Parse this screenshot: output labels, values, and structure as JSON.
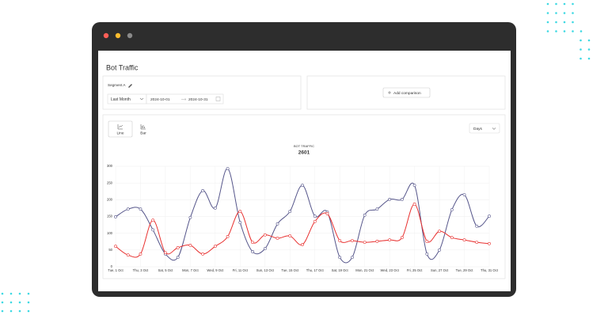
{
  "header": {
    "title": "Bot Traffic"
  },
  "filters": {
    "segment": "Segment A",
    "period": "Last Month",
    "start_date": "2024-10-01",
    "end_date": "2024-10-31"
  },
  "comparison": {
    "button": "Add comparison"
  },
  "view": {
    "tabs": [
      "Line",
      "Bar"
    ],
    "interval": "Days"
  },
  "chart_data": {
    "type": "line",
    "title": "BOT TRAFFIC",
    "subtitle": "2601",
    "categories": [
      "Tue, 1 Oct",
      null,
      "Thu, 3 Oct",
      null,
      "Sat, 5 Oct",
      null,
      "Mon, 7 Oct",
      null,
      "Wed, 9 Oct",
      null,
      "Fri, 11 Oct",
      null,
      "Sun, 13 Oct",
      null,
      "Tue, 15 Oct",
      null,
      "Thu, 17 Oct",
      null,
      "Sat, 19 Oct",
      null,
      "Mon, 21 Oct",
      null,
      "Wed, 23 Oct",
      null,
      "Fri, 25 Oct",
      null,
      "Sun, 27 Oct",
      null,
      "Tue, 29 Oct",
      null,
      "Thu, 31 Oct"
    ],
    "series": [
      {
        "color": "#55558a",
        "values": [
          149,
          172,
          172,
          110,
          38,
          28,
          147,
          227,
          175,
          293,
          132,
          45,
          54,
          128,
          165,
          243,
          151,
          163,
          28,
          28,
          154,
          172,
          201,
          201,
          243,
          38,
          50,
          170,
          215,
          121,
          151
        ]
      },
      {
        "color": "#e8302f",
        "values": [
          61,
          35,
          38,
          139,
          42,
          57,
          64,
          38,
          61,
          90,
          165,
          73,
          95,
          85,
          92,
          66,
          135,
          158,
          78,
          78,
          73,
          76,
          80,
          87,
          187,
          76,
          106,
          87,
          80,
          73,
          69
        ]
      }
    ],
    "ylim": [
      0,
      300
    ],
    "yticks": [
      0,
      50,
      100,
      150,
      200,
      250,
      300
    ],
    "grid": true
  }
}
